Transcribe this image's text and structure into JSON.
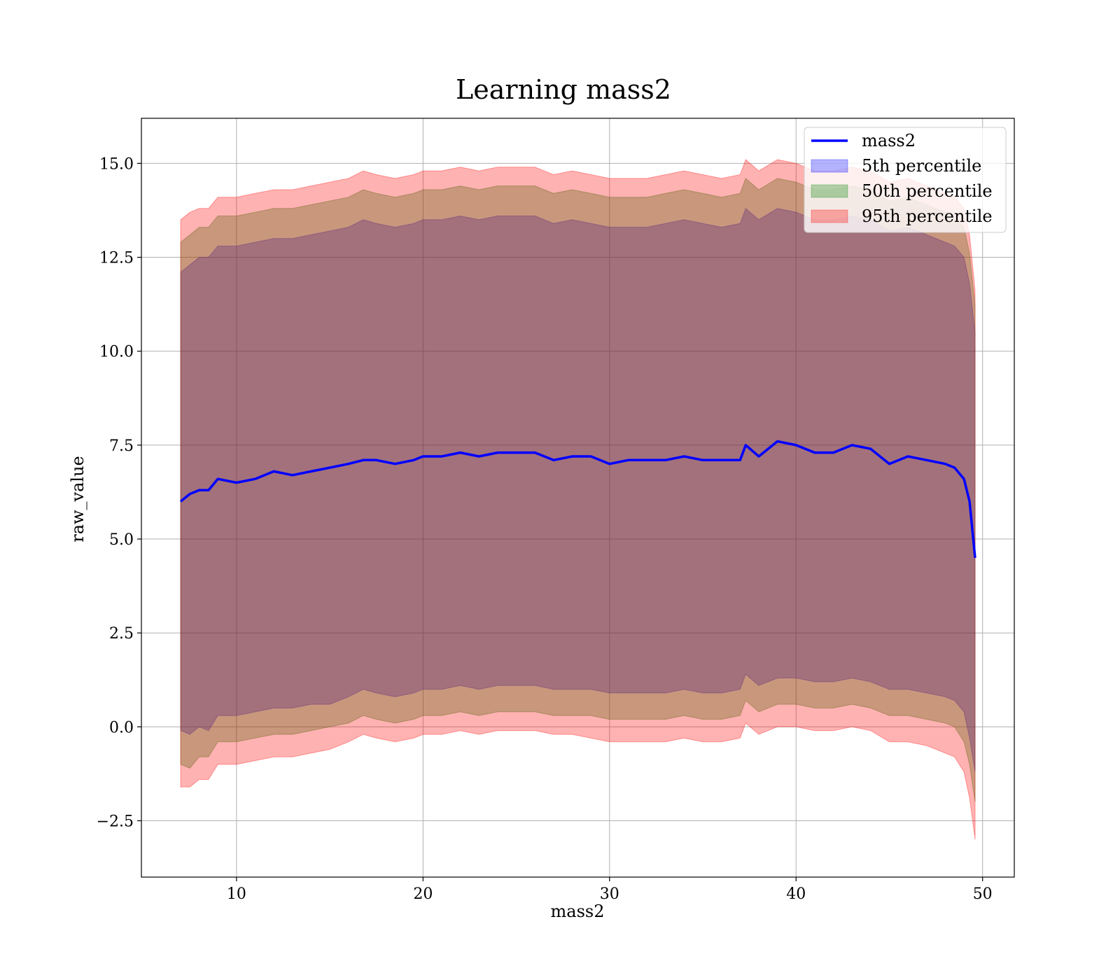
{
  "chart_data": {
    "type": "area",
    "title": "Learning mass2",
    "xlabel": "mass2",
    "ylabel": "raw_value",
    "xlim": [
      4.9,
      51.7
    ],
    "ylim": [
      -4.0,
      16.2
    ],
    "xticks": [
      10,
      20,
      30,
      40,
      50
    ],
    "yticks": [
      -2.5,
      0.0,
      2.5,
      5.0,
      7.5,
      10.0,
      12.5,
      15.0
    ],
    "xtick_labels": [
      "10",
      "20",
      "30",
      "40",
      "50"
    ],
    "ytick_labels": [
      "−2.5",
      "0.0",
      "2.5",
      "5.0",
      "7.5",
      "10.0",
      "12.5",
      "15.0"
    ],
    "grid": true,
    "legend_position": "top-right",
    "legend": [
      "mass2",
      "5th percentile",
      "50th percentile",
      "95th percentile"
    ],
    "colors": {
      "mass2": "#0000ff",
      "p5": "#0000ff",
      "p50": "#008000",
      "p95": "#ff0000"
    },
    "series": [
      {
        "name": "mass2",
        "kind": "line",
        "x": [
          7.0,
          7.5,
          8.0,
          8.5,
          9.0,
          10.0,
          11.0,
          12.0,
          13.0,
          14.0,
          15.0,
          16.0,
          16.8,
          17.5,
          18.5,
          19.5,
          20.0,
          21.0,
          22.0,
          23.0,
          24.0,
          25.0,
          26.0,
          27.0,
          28.0,
          29.0,
          30.0,
          31.0,
          32.0,
          33.0,
          34.0,
          35.0,
          36.0,
          37.0,
          37.3,
          38.0,
          39.0,
          40.0,
          41.0,
          42.0,
          43.0,
          44.0,
          45.0,
          46.0,
          47.0,
          48.0,
          48.5,
          49.0,
          49.3,
          49.6
        ],
        "y": [
          6.0,
          6.2,
          6.3,
          6.3,
          6.6,
          6.5,
          6.6,
          6.8,
          6.7,
          6.8,
          6.9,
          7.0,
          7.1,
          7.1,
          7.0,
          7.1,
          7.2,
          7.2,
          7.3,
          7.2,
          7.3,
          7.3,
          7.3,
          7.1,
          7.2,
          7.2,
          7.0,
          7.1,
          7.1,
          7.1,
          7.2,
          7.1,
          7.1,
          7.1,
          7.5,
          7.2,
          7.6,
          7.5,
          7.3,
          7.3,
          7.5,
          7.4,
          7.0,
          7.2,
          7.1,
          7.0,
          6.9,
          6.6,
          6.0,
          4.5
        ]
      },
      {
        "name": "5th percentile",
        "kind": "band",
        "x": [
          7.0,
          7.5,
          8.0,
          8.5,
          9.0,
          10.0,
          11.0,
          12.0,
          13.0,
          14.0,
          15.0,
          16.0,
          16.8,
          17.5,
          18.5,
          19.5,
          20.0,
          21.0,
          22.0,
          23.0,
          24.0,
          25.0,
          26.0,
          27.0,
          28.0,
          29.0,
          30.0,
          31.0,
          32.0,
          33.0,
          34.0,
          35.0,
          36.0,
          37.0,
          37.3,
          38.0,
          39.0,
          40.0,
          41.0,
          42.0,
          43.0,
          44.0,
          45.0,
          46.0,
          47.0,
          48.0,
          48.5,
          49.0,
          49.3,
          49.6
        ],
        "lower": [
          -0.1,
          -0.2,
          0.0,
          -0.1,
          0.3,
          0.3,
          0.4,
          0.5,
          0.5,
          0.6,
          0.6,
          0.8,
          1.0,
          0.9,
          0.8,
          0.9,
          1.0,
          1.0,
          1.1,
          1.0,
          1.1,
          1.1,
          1.1,
          1.0,
          1.0,
          1.0,
          0.9,
          0.9,
          0.9,
          0.9,
          1.0,
          0.9,
          0.9,
          1.0,
          1.4,
          1.1,
          1.3,
          1.3,
          1.2,
          1.2,
          1.3,
          1.2,
          1.0,
          1.0,
          0.9,
          0.8,
          0.7,
          0.4,
          -0.3,
          -1.2
        ],
        "upper": [
          12.1,
          12.3,
          12.5,
          12.5,
          12.8,
          12.8,
          12.9,
          13.0,
          13.0,
          13.1,
          13.2,
          13.3,
          13.5,
          13.4,
          13.3,
          13.4,
          13.5,
          13.5,
          13.6,
          13.5,
          13.6,
          13.6,
          13.6,
          13.4,
          13.5,
          13.4,
          13.3,
          13.3,
          13.3,
          13.4,
          13.5,
          13.4,
          13.3,
          13.4,
          13.8,
          13.5,
          13.8,
          13.7,
          13.5,
          13.5,
          13.6,
          13.5,
          13.2,
          13.3,
          13.1,
          12.9,
          12.8,
          12.5,
          11.8,
          10.5
        ]
      },
      {
        "name": "50th percentile",
        "kind": "band",
        "x": [
          7.0,
          7.5,
          8.0,
          8.5,
          9.0,
          10.0,
          11.0,
          12.0,
          13.0,
          14.0,
          15.0,
          16.0,
          16.8,
          17.5,
          18.5,
          19.5,
          20.0,
          21.0,
          22.0,
          23.0,
          24.0,
          25.0,
          26.0,
          27.0,
          28.0,
          29.0,
          30.0,
          31.0,
          32.0,
          33.0,
          34.0,
          35.0,
          36.0,
          37.0,
          37.3,
          38.0,
          39.0,
          40.0,
          41.0,
          42.0,
          43.0,
          44.0,
          45.0,
          46.0,
          47.0,
          48.0,
          48.5,
          49.0,
          49.3,
          49.6
        ],
        "lower": [
          -1.0,
          -1.1,
          -0.8,
          -0.8,
          -0.4,
          -0.4,
          -0.3,
          -0.2,
          -0.2,
          -0.1,
          0.0,
          0.1,
          0.3,
          0.2,
          0.1,
          0.2,
          0.3,
          0.3,
          0.4,
          0.3,
          0.4,
          0.4,
          0.4,
          0.3,
          0.3,
          0.3,
          0.2,
          0.2,
          0.2,
          0.2,
          0.3,
          0.2,
          0.2,
          0.3,
          0.7,
          0.4,
          0.6,
          0.6,
          0.5,
          0.5,
          0.6,
          0.5,
          0.3,
          0.3,
          0.2,
          0.1,
          0.0,
          -0.4,
          -1.0,
          -2.0
        ],
        "upper": [
          12.9,
          13.1,
          13.3,
          13.3,
          13.6,
          13.6,
          13.7,
          13.8,
          13.8,
          13.9,
          14.0,
          14.1,
          14.3,
          14.2,
          14.1,
          14.2,
          14.3,
          14.3,
          14.4,
          14.3,
          14.4,
          14.4,
          14.4,
          14.2,
          14.3,
          14.2,
          14.1,
          14.1,
          14.1,
          14.2,
          14.3,
          14.2,
          14.1,
          14.2,
          14.6,
          14.3,
          14.6,
          14.5,
          14.3,
          14.3,
          14.4,
          14.3,
          14.0,
          14.1,
          13.9,
          13.7,
          13.6,
          13.3,
          12.6,
          11.2
        ]
      },
      {
        "name": "95th percentile",
        "kind": "band",
        "x": [
          7.0,
          7.5,
          8.0,
          8.5,
          9.0,
          10.0,
          11.0,
          12.0,
          13.0,
          14.0,
          15.0,
          16.0,
          16.8,
          17.5,
          18.5,
          19.5,
          20.0,
          21.0,
          22.0,
          23.0,
          24.0,
          25.0,
          26.0,
          27.0,
          28.0,
          29.0,
          30.0,
          31.0,
          32.0,
          33.0,
          34.0,
          35.0,
          36.0,
          37.0,
          37.3,
          38.0,
          39.0,
          40.0,
          41.0,
          42.0,
          43.0,
          44.0,
          45.0,
          46.0,
          47.0,
          48.0,
          48.5,
          49.0,
          49.3,
          49.6
        ],
        "lower": [
          -1.6,
          -1.6,
          -1.4,
          -1.4,
          -1.0,
          -1.0,
          -0.9,
          -0.8,
          -0.8,
          -0.7,
          -0.6,
          -0.4,
          -0.2,
          -0.3,
          -0.4,
          -0.3,
          -0.2,
          -0.2,
          -0.1,
          -0.2,
          -0.1,
          -0.1,
          -0.1,
          -0.2,
          -0.2,
          -0.3,
          -0.4,
          -0.4,
          -0.4,
          -0.4,
          -0.3,
          -0.4,
          -0.4,
          -0.3,
          0.1,
          -0.2,
          0.0,
          0.0,
          -0.1,
          -0.1,
          0.0,
          -0.1,
          -0.4,
          -0.4,
          -0.5,
          -0.7,
          -0.8,
          -1.2,
          -1.9,
          -3.0
        ],
        "upper": [
          13.5,
          13.7,
          13.8,
          13.8,
          14.1,
          14.1,
          14.2,
          14.3,
          14.3,
          14.4,
          14.5,
          14.6,
          14.8,
          14.7,
          14.6,
          14.7,
          14.8,
          14.8,
          14.9,
          14.8,
          14.9,
          14.9,
          14.9,
          14.7,
          14.8,
          14.7,
          14.6,
          14.6,
          14.6,
          14.7,
          14.8,
          14.7,
          14.6,
          14.7,
          15.1,
          14.8,
          15.1,
          15.0,
          14.8,
          14.8,
          14.9,
          14.8,
          14.5,
          14.6,
          14.4,
          14.2,
          14.1,
          13.8,
          13.1,
          11.6
        ]
      }
    ]
  }
}
